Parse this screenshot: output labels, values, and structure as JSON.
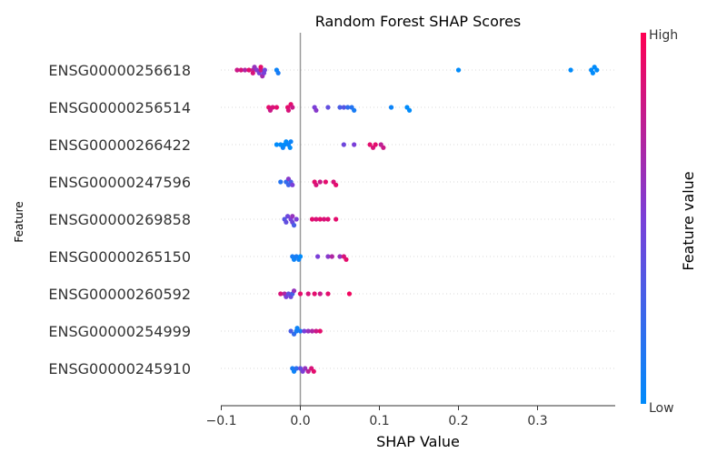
{
  "chart_data": {
    "type": "scatter",
    "title": "Random Forest SHAP Scores",
    "xlabel": "SHAP Value",
    "ylabel": "Feature",
    "xlim": [
      -0.1,
      0.4
    ],
    "xticks": [
      -0.1,
      0.0,
      0.1,
      0.2,
      0.3
    ],
    "xtick_labels": [
      "−0.1",
      "0.0",
      "0.1",
      "0.2",
      "0.3"
    ],
    "colorbar": {
      "title": "Feature value",
      "high_label": "High",
      "low_label": "Low",
      "low_color": "#008bfb",
      "high_color": "#ff0052"
    },
    "features": [
      {
        "name": "ENSG00000256618",
        "points": [
          [
            -0.08,
            0.8
          ],
          [
            -0.075,
            0.85
          ],
          [
            -0.07,
            0.7
          ],
          [
            -0.065,
            0.9
          ],
          [
            -0.06,
            0.75
          ],
          [
            -0.058,
            0.6
          ],
          [
            -0.055,
            0.55
          ],
          [
            -0.052,
            0.5
          ],
          [
            -0.05,
            0.8
          ],
          [
            -0.048,
            0.65
          ],
          [
            -0.046,
            0.5
          ],
          [
            -0.045,
            0.45
          ],
          [
            -0.06,
            0.85
          ],
          [
            -0.05,
            0.9
          ],
          [
            -0.028,
            0.1
          ],
          [
            -0.03,
            0.05
          ],
          [
            0.2,
            0.0
          ],
          [
            0.342,
            0.0
          ],
          [
            0.368,
            0.0
          ],
          [
            0.37,
            0.0
          ],
          [
            0.375,
            0.0
          ],
          [
            0.372,
            0.0
          ]
        ]
      },
      {
        "name": "ENSG00000256514",
        "points": [
          [
            -0.04,
            0.9
          ],
          [
            -0.035,
            0.85
          ],
          [
            -0.03,
            0.9
          ],
          [
            -0.038,
            0.8
          ],
          [
            -0.015,
            0.85
          ],
          [
            -0.012,
            0.9
          ],
          [
            -0.01,
            0.8
          ],
          [
            -0.016,
            0.9
          ],
          [
            0.018,
            0.5
          ],
          [
            0.02,
            0.55
          ],
          [
            0.035,
            0.4
          ],
          [
            0.05,
            0.3
          ],
          [
            0.055,
            0.35
          ],
          [
            0.06,
            0.2
          ],
          [
            0.065,
            0.15
          ],
          [
            0.068,
            0.1
          ],
          [
            0.115,
            0.05
          ],
          [
            0.135,
            0.0
          ],
          [
            0.138,
            0.0
          ]
        ]
      },
      {
        "name": "ENSG00000266422",
        "points": [
          [
            -0.03,
            0.0
          ],
          [
            -0.025,
            0.0
          ],
          [
            -0.02,
            0.0
          ],
          [
            -0.018,
            0.0
          ],
          [
            -0.015,
            0.05
          ],
          [
            -0.013,
            0.0
          ],
          [
            -0.022,
            0.05
          ],
          [
            -0.012,
            0.05
          ],
          [
            0.055,
            0.45
          ],
          [
            0.068,
            0.5
          ],
          [
            0.088,
            0.9
          ],
          [
            0.092,
            0.85
          ],
          [
            0.095,
            0.9
          ],
          [
            0.102,
            0.75
          ],
          [
            0.105,
            0.8
          ]
        ]
      },
      {
        "name": "ENSG00000247596",
        "points": [
          [
            -0.025,
            0.15
          ],
          [
            -0.018,
            0.2
          ],
          [
            -0.015,
            0.25
          ],
          [
            -0.012,
            0.3
          ],
          [
            -0.01,
            0.5
          ],
          [
            -0.015,
            0.55
          ],
          [
            0.018,
            0.9
          ],
          [
            0.02,
            0.85
          ],
          [
            0.025,
            0.8
          ],
          [
            0.032,
            0.9
          ],
          [
            0.042,
            0.85
          ],
          [
            0.045,
            0.9
          ]
        ]
      },
      {
        "name": "ENSG00000269858",
        "points": [
          [
            -0.02,
            0.35
          ],
          [
            -0.018,
            0.4
          ],
          [
            -0.016,
            0.45
          ],
          [
            -0.012,
            0.5
          ],
          [
            -0.01,
            0.45
          ],
          [
            -0.005,
            0.5
          ],
          [
            -0.008,
            0.3
          ],
          [
            -0.01,
            0.6
          ],
          [
            0.015,
            0.9
          ],
          [
            0.02,
            0.85
          ],
          [
            0.025,
            0.9
          ],
          [
            0.03,
            0.85
          ],
          [
            0.035,
            0.88
          ],
          [
            0.045,
            0.9
          ]
        ]
      },
      {
        "name": "ENSG00000265150",
        "points": [
          [
            -0.01,
            0.1
          ],
          [
            -0.008,
            0.05
          ],
          [
            -0.005,
            0.1
          ],
          [
            -0.002,
            0.05
          ],
          [
            0.0,
            0.0
          ],
          [
            0.022,
            0.5
          ],
          [
            0.035,
            0.55
          ],
          [
            0.04,
            0.7
          ],
          [
            0.05,
            0.6
          ],
          [
            0.055,
            0.85
          ],
          [
            0.058,
            0.9
          ]
        ]
      },
      {
        "name": "ENSG00000260592",
        "points": [
          [
            -0.025,
            0.85
          ],
          [
            -0.02,
            0.7
          ],
          [
            -0.018,
            0.5
          ],
          [
            -0.015,
            0.4
          ],
          [
            -0.012,
            0.45
          ],
          [
            -0.01,
            0.3
          ],
          [
            -0.008,
            0.6
          ],
          [
            0.0,
            0.9
          ],
          [
            0.01,
            0.85
          ],
          [
            0.018,
            0.9
          ],
          [
            0.025,
            0.8
          ],
          [
            0.035,
            0.9
          ],
          [
            0.062,
            0.95
          ]
        ]
      },
      {
        "name": "ENSG00000254999",
        "points": [
          [
            -0.012,
            0.3
          ],
          [
            -0.008,
            0.2
          ],
          [
            -0.005,
            0.1
          ],
          [
            -0.004,
            0.05
          ],
          [
            0.0,
            0.1
          ],
          [
            0.005,
            0.5
          ],
          [
            0.01,
            0.6
          ],
          [
            0.015,
            0.7
          ],
          [
            0.02,
            0.8
          ],
          [
            0.025,
            0.9
          ]
        ]
      },
      {
        "name": "ENSG00000245910",
        "points": [
          [
            -0.01,
            0.1
          ],
          [
            -0.008,
            0.05
          ],
          [
            -0.005,
            0.2
          ],
          [
            0.0,
            0.4
          ],
          [
            0.003,
            0.5
          ],
          [
            0.006,
            0.6
          ],
          [
            0.01,
            0.75
          ],
          [
            0.014,
            0.85
          ],
          [
            0.017,
            0.9
          ]
        ]
      }
    ]
  }
}
